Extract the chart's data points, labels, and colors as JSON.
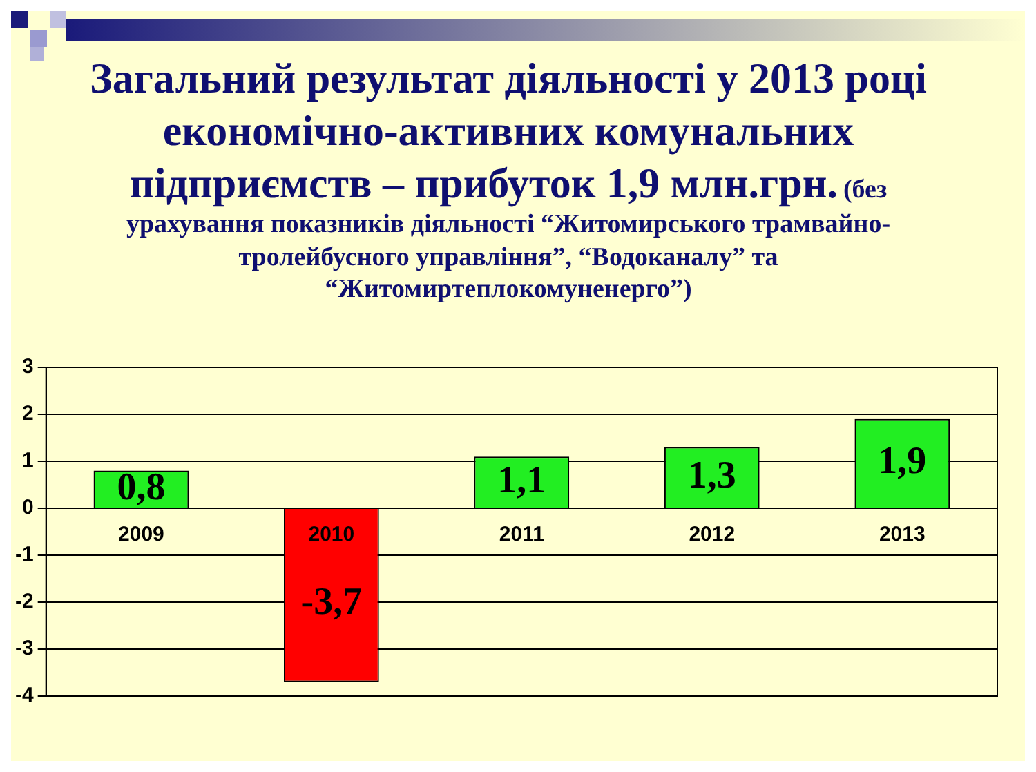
{
  "chart_data": {
    "type": "bar",
    "title": "Загальний результат діяльності у 2013 році економічно-активних комунальних підприємств – прибуток 1,9 млн.грн.",
    "subtitle": "(без урахування показників діяльності “Житомирського трамвайно-тролейбусного управління”, “Водоканалу” та “Житомиртеплокомуненерго”)",
    "categories": [
      "2009",
      "2010",
      "2011",
      "2012",
      "2013"
    ],
    "values": [
      0.8,
      -3.7,
      1.1,
      1.3,
      1.9
    ],
    "value_labels": [
      "0,8",
      "-3,7",
      "1,1",
      "1,3",
      "1,9"
    ],
    "colors": [
      "#22ee22",
      "#ff0000",
      "#22ee22",
      "#22ee22",
      "#22ee22"
    ],
    "ylim": [
      -4,
      3
    ],
    "yticks": [
      -4,
      -3,
      -2,
      -1,
      0,
      1,
      2,
      3
    ],
    "grid": "y",
    "legend": false
  }
}
